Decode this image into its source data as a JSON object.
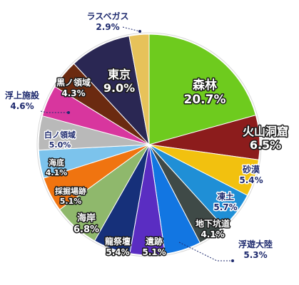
{
  "chart_data": {
    "type": "pie",
    "title": "",
    "start_angle_deg": 0,
    "direction": "clockwise",
    "slices": [
      {
        "label": "森林",
        "value": 20.7,
        "value_text": "20.7%",
        "color": "#6ecb1e"
      },
      {
        "label": "火山洞窟",
        "value": 6.5,
        "value_text": "6.5%",
        "color": "#8c1c1c"
      },
      {
        "label": "砂漠",
        "value": 5.4,
        "value_text": "5.4%",
        "color": "#f2c10f"
      },
      {
        "label": "凍土",
        "value": 5.7,
        "value_text": "5.7%",
        "color": "#1f8fd6"
      },
      {
        "label": "地下坑道",
        "value": 4.1,
        "value_text": "4.1%",
        "color": "#3f4a47"
      },
      {
        "label": "浮遊大陸",
        "value": 5.3,
        "value_text": "5.3%",
        "color": "#1276e2"
      },
      {
        "label": "遺跡",
        "value": 5.1,
        "value_text": "5.1%",
        "color": "#5a2dc2"
      },
      {
        "label": "龍祭壇",
        "value": 5.4,
        "value_text": "5.4%",
        "color": "#16307a"
      },
      {
        "label": "海岸",
        "value": 6.8,
        "value_text": "6.8%",
        "color": "#8fb86c"
      },
      {
        "label": "採掘場跡",
        "value": 5.1,
        "value_text": "5.1%",
        "color": "#f07410"
      },
      {
        "label": "海底",
        "value": 4.1,
        "value_text": "4.1%",
        "color": "#7cc3ec"
      },
      {
        "label": "白ノ領域",
        "value": 5.0,
        "value_text": "5.0%",
        "color": "#b9b9b9"
      },
      {
        "label": "浮上施設",
        "value": 4.6,
        "value_text": "4.6%",
        "color": "#d8369e"
      },
      {
        "label": "黒ノ領域",
        "value": 4.3,
        "value_text": "4.3%",
        "color": "#6b2a10"
      },
      {
        "label": "東京",
        "value": 9.0,
        "value_text": "9.0%",
        "color": "#2a2753"
      },
      {
        "label": "ラスベガス",
        "value": 2.9,
        "value_text": "2.9%",
        "color": "#e7c25a"
      }
    ]
  }
}
